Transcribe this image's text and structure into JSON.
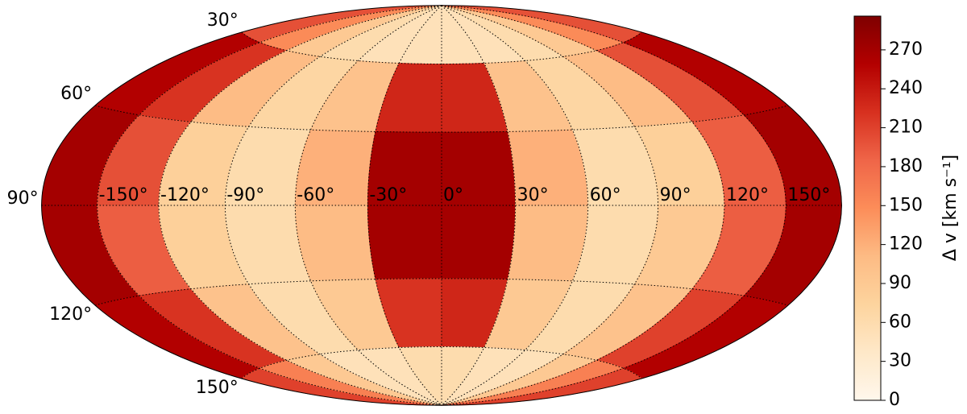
{
  "chart_data": {
    "type": "heatmap",
    "projection": "hammer",
    "xbins": [
      -180,
      -150,
      -120,
      -90,
      -60,
      -30,
      0,
      30,
      60,
      90,
      120,
      150,
      180
    ],
    "ybins": [
      0,
      30,
      60,
      90,
      120,
      150,
      180
    ],
    "values": [
      [
        200,
        150,
        90,
        60,
        50,
        50,
        50,
        50,
        60,
        90,
        150,
        200
      ],
      [
        260,
        220,
        110,
        70,
        100,
        230,
        230,
        100,
        70,
        110,
        200,
        260
      ],
      [
        270,
        200,
        80,
        60,
        120,
        270,
        270,
        120,
        60,
        80,
        190,
        270
      ],
      [
        270,
        190,
        80,
        60,
        110,
        270,
        270,
        110,
        60,
        90,
        190,
        270
      ],
      [
        260,
        220,
        100,
        60,
        90,
        220,
        230,
        90,
        60,
        100,
        210,
        260
      ],
      [
        210,
        160,
        90,
        50,
        50,
        60,
        60,
        50,
        50,
        90,
        160,
        210
      ]
    ],
    "colormap": [
      "#fff7ec",
      "#fee8c8",
      "#fdd49e",
      "#fdbb84",
      "#fc8d59",
      "#ef6548",
      "#d7301f",
      "#b30000",
      "#7f0000"
    ],
    "clim": [
      0,
      296
    ],
    "xticks": [
      {
        "value": -150,
        "label": "-150°"
      },
      {
        "value": -120,
        "label": "-120°"
      },
      {
        "value": -90,
        "label": "-90°"
      },
      {
        "value": -60,
        "label": "-60°"
      },
      {
        "value": -30,
        "label": "-30°"
      },
      {
        "value": 0,
        "label": "0°"
      },
      {
        "value": 30,
        "label": "30°"
      },
      {
        "value": 60,
        "label": "60°"
      },
      {
        "value": 90,
        "label": "90°"
      },
      {
        "value": 120,
        "label": "120°"
      },
      {
        "value": 150,
        "label": "150°"
      }
    ],
    "yticks": [
      {
        "value": 30,
        "label": "30°"
      },
      {
        "value": 60,
        "label": "60°"
      },
      {
        "value": 90,
        "label": "90°"
      },
      {
        "value": 120,
        "label": "120°"
      },
      {
        "value": 150,
        "label": "150°"
      }
    ],
    "grid": true,
    "colorbar_label": "Δ v [km s⁻¹]",
    "cticks": [
      0,
      30,
      60,
      90,
      120,
      150,
      180,
      210,
      240,
      270
    ]
  }
}
